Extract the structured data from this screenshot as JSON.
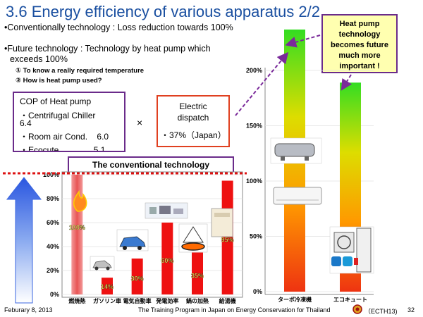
{
  "slide": {
    "title": "3.6  Energy efficiency of various apparatus 2/2",
    "bullet_conventional": "•Conventionally technology : Loss reduction towards 100%",
    "bullet_future_1": "•Future technology  : Technology by heat pump which",
    "bullet_future_2": "exceeds 100%",
    "sub_1": "①  To know a really required temperature",
    "sub_2": "②  How is heat pump used?"
  },
  "cop_box": {
    "title": "COP of Heat pump",
    "item_1": "・Centrifugal Chiller",
    "item_1_value": "6.4",
    "item_2": "・Room air Cond.",
    "item_2_value": "6.0",
    "item_3": "・Ecocute",
    "item_3_value": "5.1"
  },
  "multiply_sign": "×",
  "electric_box": {
    "line_1": "Electric",
    "line_2": "dispatch",
    "line_3": "・37%（Japan）"
  },
  "callout": {
    "text_1": "Heat pump",
    "text_2": "technology",
    "text_3": "becomes future",
    "text_4": "much more",
    "text_5": "important !"
  },
  "conventional_chart_title": "The conventional technology",
  "chart_data": [
    {
      "type": "bar",
      "categories": [
        "燃焼熱",
        "ガソリン車",
        "電気自動車",
        "発電効率",
        "鍋の加熱",
        "給湯機"
      ],
      "values": [
        100,
        14,
        30,
        60,
        35,
        95
      ],
      "value_labels": [
        "100%",
        "14%",
        "30%",
        "60%",
        "35%",
        "95%"
      ],
      "yticks": [
        "0%",
        "20%",
        "40%",
        "60%",
        "80%",
        "100%"
      ],
      "ylim": [
        0,
        100
      ],
      "bar_colors": [
        "#f07070",
        "#ee1111",
        "#ee1111",
        "#ee1111",
        "#ee1111",
        "#ee1111"
      ]
    },
    {
      "type": "bar",
      "categories": [
        "ターボ冷凍機",
        "エコキュート"
      ],
      "values": [
        237,
        189
      ],
      "yticks": [
        "0%",
        "50%",
        "100%",
        "150%",
        "200%"
      ],
      "ylim": [
        0,
        250
      ],
      "gradient": [
        "#ee3311",
        "#ff9900",
        "#dddd00",
        "#33dd22"
      ]
    }
  ],
  "footer": {
    "date": "Feburary 8, 2013",
    "program": "The Training Program in Japan on Energy Conservation for Thailand",
    "code": "（ECTH13)",
    "page": "32"
  }
}
